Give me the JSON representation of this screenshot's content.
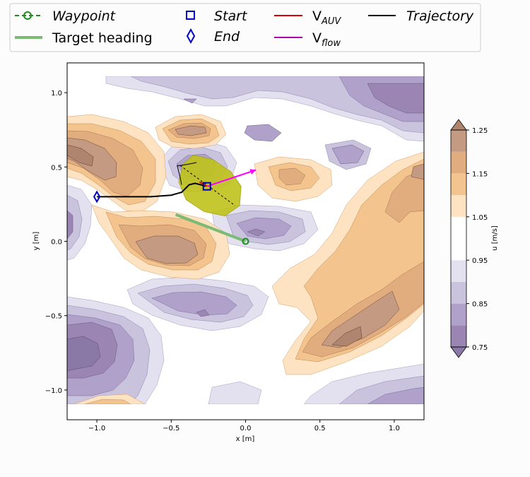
{
  "chart_data": {
    "type": "contour",
    "xlabel": "x [m]",
    "ylabel": "y [m]",
    "xlim": [
      -1.2,
      1.2
    ],
    "ylim": [
      -1.2,
      1.2
    ],
    "field_extent": {
      "x": [
        -1.2,
        1.2
      ],
      "y": [
        -1.1,
        1.1
      ]
    },
    "xticks": [
      -1.0,
      -0.5,
      0.0,
      0.5,
      1.0
    ],
    "xtick_labels": [
      "−1.0",
      "−0.5",
      "0.0",
      "0.5",
      "1.0"
    ],
    "yticks": [
      -1.0,
      -0.5,
      0.0,
      0.5,
      1.0
    ],
    "ytick_labels": [
      "−1.0",
      "−0.5",
      "0.0",
      "0.5",
      "1.0"
    ],
    "colorbar": {
      "label": "u [m/s]",
      "levels": [
        0.75,
        0.8,
        0.85,
        0.9,
        0.95,
        1.05,
        1.1,
        1.15,
        1.2,
        1.25
      ],
      "tick_values": [
        0.75,
        0.85,
        0.95,
        1.05,
        1.15,
        1.25
      ],
      "tick_labels": [
        "0.75",
        "0.85",
        "0.95",
        "1.05",
        "1.15",
        "1.25"
      ],
      "colors": [
        "#9b85b3",
        "#b0a1ca",
        "#cac3de",
        "#e3e0ef",
        "#ffffff",
        "#fde3c1",
        "#f4c48f",
        "#e2ad7e",
        "#c49a83"
      ],
      "extend": "both"
    },
    "legend": {
      "placement": "top",
      "items": [
        {
          "label": "Waypoint",
          "style": "italic",
          "marker": "circle-dashed-line",
          "color": "#1e8c1e"
        },
        {
          "label": "Start",
          "style": "italic",
          "marker": "square",
          "color": "#0000cc"
        },
        {
          "label": "V",
          "sub": "AUV",
          "marker": "line",
          "color": "#dd0000"
        },
        {
          "label": "Trajectory",
          "style": "italic",
          "marker": "line",
          "color": "#000000"
        },
        {
          "label": "Target heading",
          "marker": "thick-line",
          "color": "#7bbb73"
        },
        {
          "label": "End",
          "style": "italic",
          "marker": "thin-diamond",
          "color": "#0000cc"
        },
        {
          "label": "V",
          "sub": "flow",
          "marker": "line",
          "color": "#aa00aa"
        }
      ]
    },
    "start": {
      "x": -0.26,
      "y": 0.37
    },
    "end": {
      "x": -1.0,
      "y": 0.3
    },
    "waypoint": {
      "x": 0.0,
      "y": 0.0
    },
    "target_heading": [
      [
        -0.47,
        0.18
      ],
      [
        0.0,
        0.0
      ]
    ],
    "trajectory": {
      "x": [
        -1.0,
        -0.82,
        -0.64,
        -0.5,
        -0.43,
        -0.38,
        -0.34,
        -0.3,
        -0.27
      ],
      "y": [
        0.3,
        0.3,
        0.3,
        0.31,
        0.33,
        0.38,
        0.39,
        0.38,
        0.37
      ]
    },
    "recent_trajectory": {
      "x": [
        -0.43,
        -0.44,
        -0.46,
        -0.44,
        -0.38,
        -0.33
      ],
      "y": [
        0.38,
        0.43,
        0.51,
        0.51,
        0.52,
        0.53
      ]
    },
    "v_flow": {
      "from": [
        -0.26,
        0.37
      ],
      "to": [
        0.07,
        0.48
      ]
    },
    "v_auv": {
      "from": [
        -0.26,
        0.37
      ],
      "to": [
        -0.31,
        0.4
      ]
    },
    "reachable_set": [
      [
        -0.35,
        0.58
      ],
      [
        -0.22,
        0.55
      ],
      [
        -0.1,
        0.47
      ],
      [
        -0.03,
        0.37
      ],
      [
        -0.04,
        0.24
      ],
      [
        -0.14,
        0.17
      ],
      [
        -0.28,
        0.2
      ],
      [
        -0.4,
        0.28
      ],
      [
        -0.45,
        0.4
      ],
      [
        -0.42,
        0.52
      ]
    ],
    "heading_line": [
      [
        -0.44,
        0.51
      ],
      [
        -0.07,
        0.24
      ]
    ],
    "color_high": {
      "fill": "#e2ad7e",
      "stroke": "#6b4a35"
    },
    "color_low": {
      "fill": "#b0a1ca",
      "stroke": "#6a5a80"
    }
  }
}
